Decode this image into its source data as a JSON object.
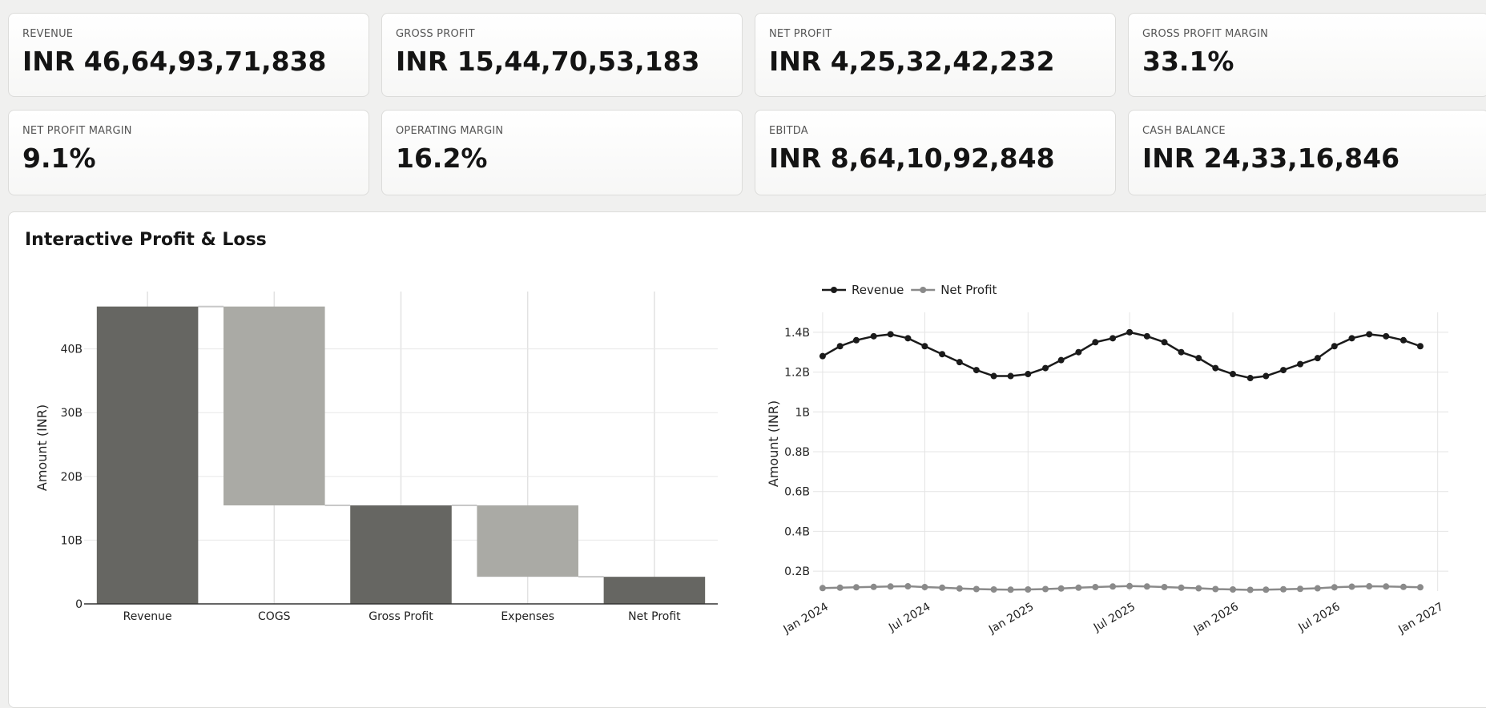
{
  "kpis": [
    {
      "label": "REVENUE",
      "value": "INR 46,64,93,71,838"
    },
    {
      "label": "GROSS PROFIT",
      "value": "INR 15,44,70,53,183"
    },
    {
      "label": "NET PROFIT",
      "value": "INR 4,25,32,42,232"
    },
    {
      "label": "GROSS PROFIT MARGIN",
      "value": "33.1%"
    },
    {
      "label": "NET PROFIT MARGIN",
      "value": "9.1%"
    },
    {
      "label": "OPERATING MARGIN",
      "value": "16.2%"
    },
    {
      "label": "EBITDA",
      "value": "INR 8,64,10,92,848"
    },
    {
      "label": "CASH BALANCE",
      "value": "INR 24,33,16,846"
    }
  ],
  "panel": {
    "title": "Interactive Profit & Loss"
  },
  "colors": {
    "dark_bar": "#666662",
    "light_bar": "#aaaaa5",
    "revenue_line": "#1a1a1a",
    "net_profit_line": "#8a8a8a"
  },
  "chart_data": [
    {
      "type": "bar",
      "subtype": "waterfall",
      "categories": [
        "Revenue",
        "COGS",
        "Gross Profit",
        "Expenses",
        "Net Profit"
      ],
      "bars": [
        {
          "label": "Revenue",
          "base": 0,
          "top": 46.65,
          "kind": "total"
        },
        {
          "label": "COGS",
          "base": 15.45,
          "top": 46.65,
          "kind": "decrease"
        },
        {
          "label": "Gross Profit",
          "base": 0,
          "top": 15.45,
          "kind": "total"
        },
        {
          "label": "Expenses",
          "base": 4.25,
          "top": 15.45,
          "kind": "decrease"
        },
        {
          "label": "Net Profit",
          "base": 0,
          "top": 4.25,
          "kind": "total"
        }
      ],
      "unit": "B",
      "ylabel": "Amount (INR)",
      "ylim": [
        0,
        49
      ],
      "yticks": [
        0,
        10,
        20,
        30,
        40
      ],
      "ytick_labels": [
        "0",
        "10B",
        "20B",
        "30B",
        "40B"
      ],
      "grid": true
    },
    {
      "type": "line",
      "ylabel": "Amount (INR)",
      "ylim": [
        0.1,
        1.5
      ],
      "yticks": [
        0.2,
        0.4,
        0.6,
        0.8,
        1.0,
        1.2,
        1.4
      ],
      "ytick_labels": [
        "0.2B",
        "0.4B",
        "0.6B",
        "0.8B",
        "1B",
        "1.2B",
        "1.4B"
      ],
      "xrange": [
        "2023-12-15",
        "2027-01-20"
      ],
      "xticks": [
        "2024-01-01",
        "2024-07-01",
        "2025-01-01",
        "2025-07-01",
        "2026-01-01",
        "2026-07-01",
        "2027-01-01"
      ],
      "xtick_labels": [
        "Jan 2024",
        "Jul 2024",
        "Jan 2025",
        "Jul 2025",
        "Jan 2026",
        "Jul 2026",
        "Jan 2027"
      ],
      "legend": "top-left",
      "grid": true,
      "x": [
        "2024-01-01",
        "2024-02-01",
        "2024-03-01",
        "2024-04-01",
        "2024-05-01",
        "2024-06-01",
        "2024-07-01",
        "2024-08-01",
        "2024-09-01",
        "2024-10-01",
        "2024-11-01",
        "2024-12-01",
        "2025-01-01",
        "2025-02-01",
        "2025-03-01",
        "2025-04-01",
        "2025-05-01",
        "2025-06-01",
        "2025-07-01",
        "2025-08-01",
        "2025-09-01",
        "2025-10-01",
        "2025-11-01",
        "2025-12-01",
        "2026-01-01",
        "2026-02-01",
        "2026-03-01",
        "2026-04-01",
        "2026-05-01",
        "2026-06-01",
        "2026-07-01",
        "2026-08-01",
        "2026-09-01",
        "2026-10-01",
        "2026-11-01",
        "2026-12-01"
      ],
      "series": [
        {
          "name": "Revenue",
          "values": [
            1.28,
            1.33,
            1.36,
            1.38,
            1.39,
            1.37,
            1.33,
            1.29,
            1.25,
            1.21,
            1.18,
            1.18,
            1.19,
            1.22,
            1.26,
            1.3,
            1.35,
            1.37,
            1.4,
            1.38,
            1.35,
            1.3,
            1.27,
            1.22,
            1.19,
            1.17,
            1.18,
            1.21,
            1.24,
            1.27,
            1.33,
            1.37,
            1.39,
            1.38,
            1.36,
            1.33
          ]
        },
        {
          "name": "Net Profit",
          "values": [
            0.115,
            0.117,
            0.119,
            0.121,
            0.123,
            0.124,
            0.12,
            0.117,
            0.113,
            0.11,
            0.108,
            0.107,
            0.108,
            0.11,
            0.113,
            0.117,
            0.12,
            0.123,
            0.125,
            0.123,
            0.12,
            0.117,
            0.114,
            0.11,
            0.108,
            0.106,
            0.107,
            0.109,
            0.111,
            0.114,
            0.119,
            0.122,
            0.124,
            0.123,
            0.121,
            0.119
          ]
        }
      ]
    }
  ]
}
